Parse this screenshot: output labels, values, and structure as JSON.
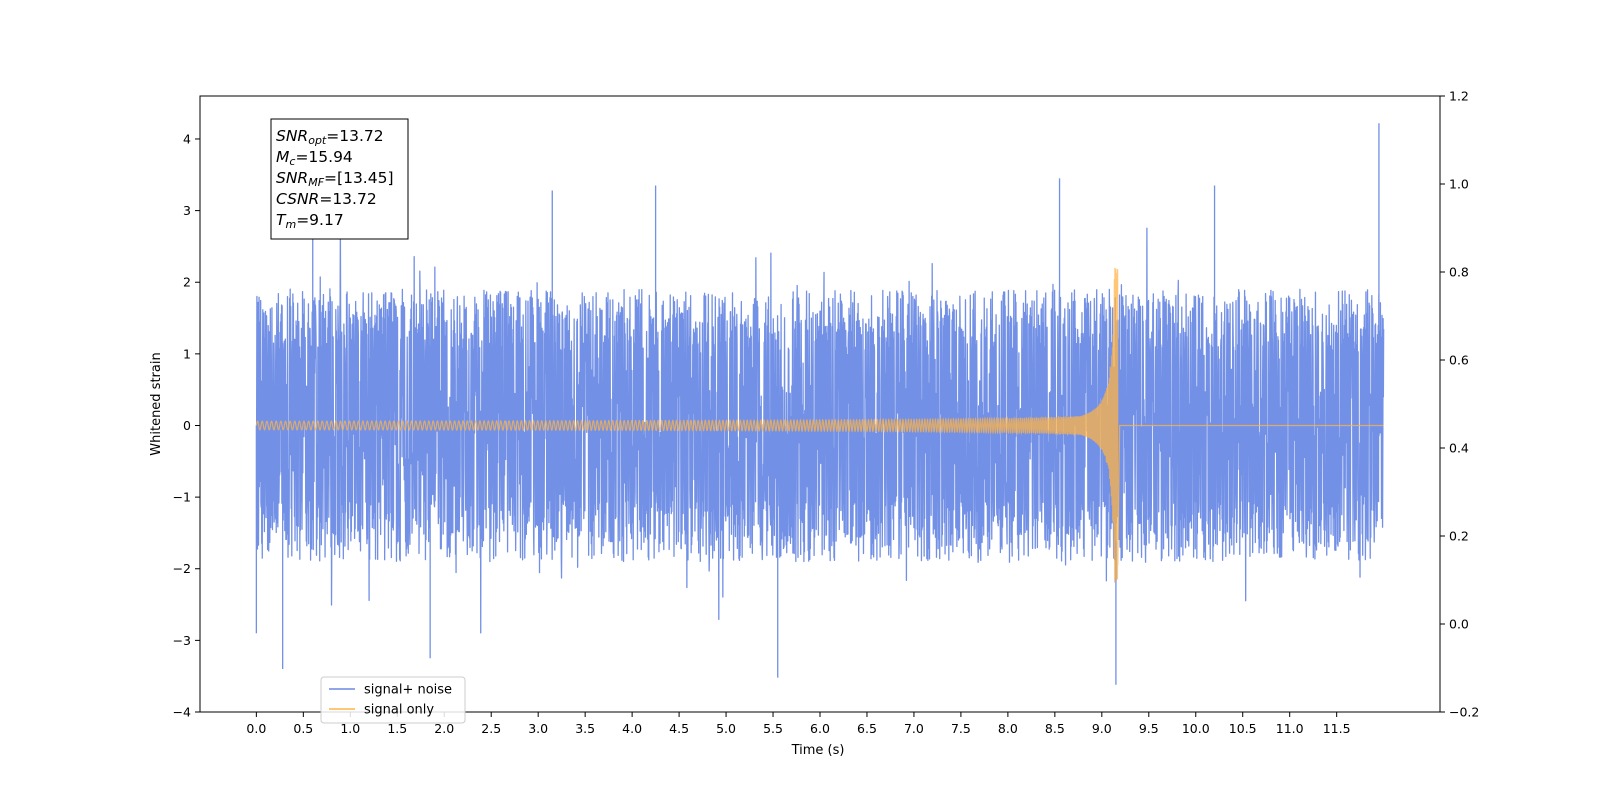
{
  "chart_data": {
    "type": "line",
    "xlabel": "Time (s)",
    "ylabel": "Whitened strain",
    "xlim": [
      -0.6,
      12.6
    ],
    "ylim": [
      -4,
      4.6
    ],
    "y2lim": [
      -0.2,
      1.2
    ],
    "x_ticks": [
      0.0,
      0.5,
      1.0,
      1.5,
      2.0,
      2.5,
      3.0,
      3.5,
      4.0,
      4.5,
      5.0,
      5.5,
      6.0,
      6.5,
      7.0,
      7.5,
      8.0,
      8.5,
      9.0,
      9.5,
      10.0,
      10.5,
      11.0,
      11.5
    ],
    "x_tick_labels": [
      "0.0",
      "0.5",
      "1.0",
      "1.5",
      "2.0",
      "2.5",
      "3.0",
      "3.5",
      "4.0",
      "4.5",
      "5.0",
      "5.5",
      "6.0",
      "6.5",
      "7.0",
      "7.5",
      "8.0",
      "8.5",
      "9.0",
      "9.5",
      "10.0",
      "10.5",
      "11.0",
      "11.5"
    ],
    "y_ticks": [
      -4,
      -3,
      -2,
      -1,
      0,
      1,
      2,
      3,
      4
    ],
    "y_tick_labels": [
      "−4",
      "−3",
      "−2",
      "−1",
      "0",
      "1",
      "2",
      "3",
      "4"
    ],
    "y2_ticks": [
      -0.2,
      0.0,
      0.2,
      0.4,
      0.6,
      0.8,
      1.0,
      1.2
    ],
    "y2_tick_labels": [
      "−0.2",
      "0.0",
      "0.2",
      "0.4",
      "0.6",
      "0.8",
      "1.0",
      "1.2"
    ],
    "grid": false,
    "legend_position": "lower-left",
    "series": [
      {
        "name": "signal+ noise",
        "color": "#6a8ae4",
        "x_range": [
          0.0,
          12.0
        ],
        "typical_envelope": [
          -1.9,
          1.9
        ],
        "peaks": [
          {
            "x": 0.0,
            "y": -2.9
          },
          {
            "x": 0.28,
            "y": -3.4
          },
          {
            "x": 0.6,
            "y": 2.65
          },
          {
            "x": 1.85,
            "y": -3.25
          },
          {
            "x": 3.15,
            "y": 3.28
          },
          {
            "x": 4.25,
            "y": 3.35
          },
          {
            "x": 5.55,
            "y": -3.52
          },
          {
            "x": 8.55,
            "y": 3.45
          },
          {
            "x": 9.15,
            "y": -3.62
          },
          {
            "x": 10.2,
            "y": 3.35
          },
          {
            "x": 11.95,
            "y": 4.22
          }
        ]
      },
      {
        "name": "signal only",
        "color": "#ffb347",
        "x_range": [
          0.0,
          12.0
        ],
        "merger_time": 9.17,
        "start_amplitude": 0.06,
        "peak_amplitude": 2.2,
        "start_frequency_hz": 20
      }
    ],
    "annotation": [
      {
        "symbol": "SNR",
        "sub": "opt",
        "value": "=13.72"
      },
      {
        "symbol": "M",
        "sub": "c",
        "value": "=15.94"
      },
      {
        "symbol": "SNR",
        "sub": "MF",
        "value": "=[13.45]"
      },
      {
        "symbol": "CSNR",
        "sub": "",
        "value": "=13.72"
      },
      {
        "symbol": "T",
        "sub": "m",
        "value": "=9.17"
      }
    ]
  }
}
